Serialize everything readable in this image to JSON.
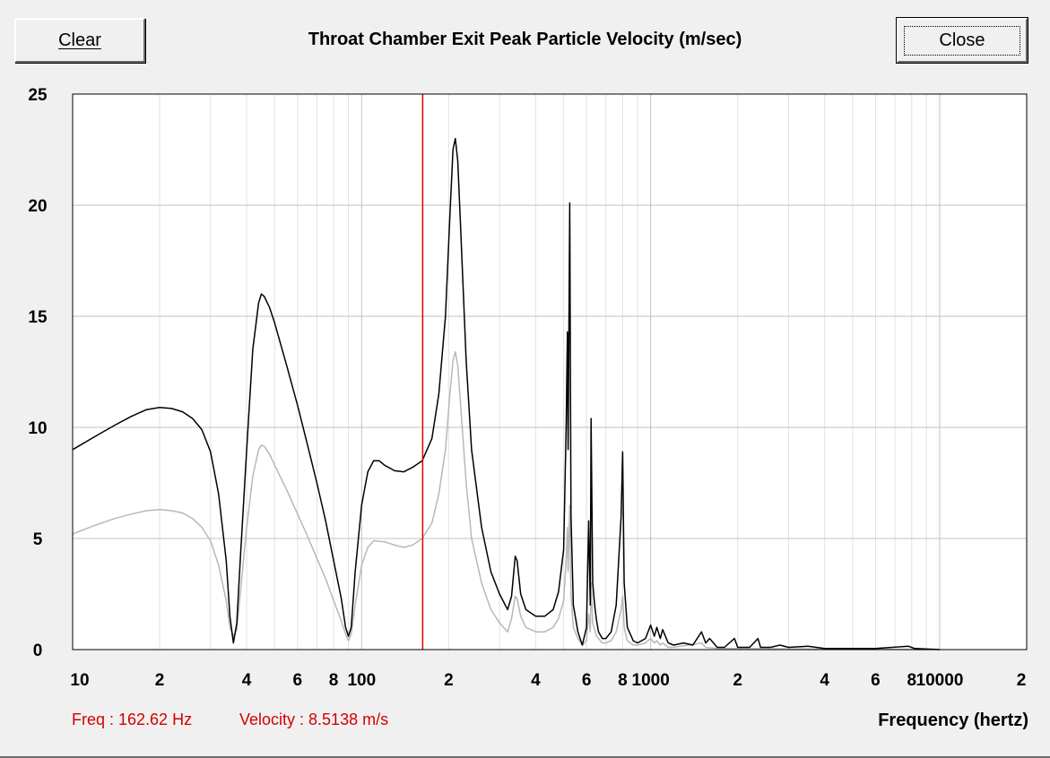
{
  "window": {
    "clear_label": "Clear",
    "close_label": "Close",
    "title": "Throat Chamber Exit Peak Particle Velocity (m/sec)"
  },
  "readout": {
    "freq": "Freq : 162.62 Hz",
    "velocity": "Velocity : 8.5138 m/s"
  },
  "chart_data": {
    "type": "line",
    "title": "Throat Chamber Exit Peak Particle Velocity (m/sec)",
    "xlabel": "Frequency (hertz)",
    "ylabel": "",
    "x_scale": "log",
    "xlim": [
      10,
      20000
    ],
    "ylim": [
      0,
      25
    ],
    "grid": true,
    "y_ticks": [
      "0",
      "5",
      "10",
      "15",
      "20",
      "25"
    ],
    "x_tick_labels": [
      {
        "x": 10,
        "label": "10"
      },
      {
        "x": 20,
        "label": "2"
      },
      {
        "x": 40,
        "label": "4"
      },
      {
        "x": 60,
        "label": "6"
      },
      {
        "x": 80,
        "label": "8"
      },
      {
        "x": 100,
        "label": "100"
      },
      {
        "x": 200,
        "label": "2"
      },
      {
        "x": 400,
        "label": "4"
      },
      {
        "x": 600,
        "label": "6"
      },
      {
        "x": 800,
        "label": "8"
      },
      {
        "x": 1000,
        "label": "1000"
      },
      {
        "x": 2000,
        "label": "2"
      },
      {
        "x": 4000,
        "label": "4"
      },
      {
        "x": 6000,
        "label": "6"
      },
      {
        "x": 8000,
        "label": "8"
      },
      {
        "x": 10000,
        "label": "10000"
      },
      {
        "x": 20000,
        "label": "2"
      }
    ],
    "cursor": {
      "x": 162.62,
      "color": "#e00000"
    },
    "series": [
      {
        "color": "#000000",
        "points": [
          [
            10,
            9.0
          ],
          [
            12,
            9.6
          ],
          [
            14,
            10.1
          ],
          [
            16,
            10.5
          ],
          [
            18,
            10.8
          ],
          [
            20,
            10.9
          ],
          [
            22,
            10.85
          ],
          [
            24,
            10.7
          ],
          [
            26,
            10.4
          ],
          [
            28,
            9.9
          ],
          [
            30,
            8.9
          ],
          [
            32,
            7.0
          ],
          [
            34,
            4.0
          ],
          [
            35,
            1.5
          ],
          [
            36,
            0.3
          ],
          [
            37,
            1.2
          ],
          [
            38,
            4.0
          ],
          [
            40,
            9.0
          ],
          [
            42,
            13.5
          ],
          [
            44,
            15.6
          ],
          [
            45,
            16.0
          ],
          [
            46,
            15.9
          ],
          [
            48,
            15.4
          ],
          [
            50,
            14.7
          ],
          [
            55,
            12.8
          ],
          [
            60,
            11.0
          ],
          [
            65,
            9.2
          ],
          [
            70,
            7.5
          ],
          [
            75,
            5.8
          ],
          [
            80,
            4.0
          ],
          [
            85,
            2.3
          ],
          [
            88,
            1.0
          ],
          [
            90,
            0.6
          ],
          [
            92,
            1.0
          ],
          [
            95,
            3.5
          ],
          [
            100,
            6.5
          ],
          [
            105,
            8.0
          ],
          [
            110,
            8.5
          ],
          [
            115,
            8.5
          ],
          [
            120,
            8.3
          ],
          [
            130,
            8.05
          ],
          [
            140,
            8.0
          ],
          [
            150,
            8.2
          ],
          [
            162,
            8.5
          ],
          [
            175,
            9.5
          ],
          [
            185,
            11.5
          ],
          [
            195,
            15.0
          ],
          [
            202,
            19.5
          ],
          [
            207,
            22.5
          ],
          [
            211,
            23.0
          ],
          [
            215,
            22.0
          ],
          [
            220,
            19.0
          ],
          [
            230,
            13.0
          ],
          [
            240,
            9.0
          ],
          [
            260,
            5.5
          ],
          [
            280,
            3.5
          ],
          [
            300,
            2.5
          ],
          [
            320,
            1.8
          ],
          [
            330,
            2.4
          ],
          [
            340,
            4.2
          ],
          [
            345,
            4.0
          ],
          [
            355,
            2.5
          ],
          [
            370,
            1.8
          ],
          [
            400,
            1.5
          ],
          [
            430,
            1.5
          ],
          [
            460,
            1.8
          ],
          [
            480,
            2.6
          ],
          [
            500,
            4.5
          ],
          [
            510,
            10.0
          ],
          [
            515,
            14.3
          ],
          [
            518,
            9.0
          ],
          [
            525,
            20.1
          ],
          [
            530,
            6.0
          ],
          [
            540,
            2.0
          ],
          [
            560,
            0.8
          ],
          [
            580,
            0.2
          ],
          [
            600,
            1.0
          ],
          [
            610,
            5.8
          ],
          [
            618,
            2.0
          ],
          [
            622,
            10.4
          ],
          [
            630,
            3.0
          ],
          [
            640,
            2.0
          ],
          [
            650,
            1.3
          ],
          [
            660,
            0.8
          ],
          [
            680,
            0.5
          ],
          [
            700,
            0.5
          ],
          [
            730,
            0.8
          ],
          [
            760,
            2.0
          ],
          [
            790,
            6.0
          ],
          [
            800,
            8.9
          ],
          [
            810,
            3.0
          ],
          [
            830,
            1.0
          ],
          [
            870,
            0.4
          ],
          [
            900,
            0.3
          ],
          [
            960,
            0.5
          ],
          [
            1000,
            1.1
          ],
          [
            1030,
            0.6
          ],
          [
            1050,
            1.0
          ],
          [
            1080,
            0.5
          ],
          [
            1100,
            0.9
          ],
          [
            1150,
            0.3
          ],
          [
            1200,
            0.2
          ],
          [
            1300,
            0.3
          ],
          [
            1400,
            0.2
          ],
          [
            1500,
            0.8
          ],
          [
            1550,
            0.3
          ],
          [
            1600,
            0.5
          ],
          [
            1700,
            0.1
          ],
          [
            1800,
            0.1
          ],
          [
            1950,
            0.5
          ],
          [
            2000,
            0.1
          ],
          [
            2200,
            0.1
          ],
          [
            2350,
            0.5
          ],
          [
            2400,
            0.1
          ],
          [
            2600,
            0.1
          ],
          [
            2800,
            0.2
          ],
          [
            3000,
            0.1
          ],
          [
            3500,
            0.15
          ],
          [
            4000,
            0.05
          ],
          [
            6000,
            0.05
          ],
          [
            7800,
            0.15
          ],
          [
            8200,
            0.05
          ],
          [
            10000,
            0.0
          ]
        ]
      },
      {
        "color": "#b8b8b8",
        "points": [
          [
            10,
            5.2
          ],
          [
            12,
            5.6
          ],
          [
            14,
            5.9
          ],
          [
            16,
            6.1
          ],
          [
            18,
            6.25
          ],
          [
            20,
            6.3
          ],
          [
            22,
            6.25
          ],
          [
            24,
            6.15
          ],
          [
            26,
            5.9
          ],
          [
            28,
            5.5
          ],
          [
            30,
            4.9
          ],
          [
            32,
            3.8
          ],
          [
            34,
            2.2
          ],
          [
            35,
            1.0
          ],
          [
            36,
            0.6
          ],
          [
            37,
            0.9
          ],
          [
            38,
            2.5
          ],
          [
            40,
            5.5
          ],
          [
            42,
            7.8
          ],
          [
            44,
            9.0
          ],
          [
            45,
            9.2
          ],
          [
            46,
            9.15
          ],
          [
            48,
            8.8
          ],
          [
            50,
            8.3
          ],
          [
            55,
            7.2
          ],
          [
            60,
            6.1
          ],
          [
            65,
            5.1
          ],
          [
            70,
            4.1
          ],
          [
            75,
            3.2
          ],
          [
            80,
            2.2
          ],
          [
            85,
            1.3
          ],
          [
            88,
            0.7
          ],
          [
            90,
            0.4
          ],
          [
            92,
            0.7
          ],
          [
            95,
            2.0
          ],
          [
            100,
            3.8
          ],
          [
            105,
            4.6
          ],
          [
            110,
            4.9
          ],
          [
            120,
            4.85
          ],
          [
            130,
            4.7
          ],
          [
            140,
            4.6
          ],
          [
            150,
            4.7
          ],
          [
            162,
            5.0
          ],
          [
            175,
            5.7
          ],
          [
            185,
            7.0
          ],
          [
            195,
            9.0
          ],
          [
            202,
            11.5
          ],
          [
            207,
            13.0
          ],
          [
            211,
            13.4
          ],
          [
            215,
            12.8
          ],
          [
            220,
            11.0
          ],
          [
            230,
            7.5
          ],
          [
            240,
            5.0
          ],
          [
            260,
            3.0
          ],
          [
            280,
            1.8
          ],
          [
            300,
            1.2
          ],
          [
            320,
            0.8
          ],
          [
            330,
            1.4
          ],
          [
            340,
            2.4
          ],
          [
            345,
            2.3
          ],
          [
            355,
            1.5
          ],
          [
            370,
            1.0
          ],
          [
            400,
            0.8
          ],
          [
            430,
            0.8
          ],
          [
            460,
            1.0
          ],
          [
            480,
            1.4
          ],
          [
            500,
            2.2
          ],
          [
            510,
            4.0
          ],
          [
            515,
            5.5
          ],
          [
            518,
            3.5
          ],
          [
            525,
            6.5
          ],
          [
            530,
            2.5
          ],
          [
            540,
            1.0
          ],
          [
            560,
            0.5
          ],
          [
            580,
            0.2
          ],
          [
            600,
            0.4
          ],
          [
            610,
            1.6
          ],
          [
            618,
            0.8
          ],
          [
            622,
            3.0
          ],
          [
            630,
            1.2
          ],
          [
            640,
            0.9
          ],
          [
            650,
            0.6
          ],
          [
            660,
            0.5
          ],
          [
            680,
            0.3
          ],
          [
            700,
            0.3
          ],
          [
            730,
            0.4
          ],
          [
            760,
            0.8
          ],
          [
            790,
            1.8
          ],
          [
            800,
            2.4
          ],
          [
            810,
            1.0
          ],
          [
            830,
            0.4
          ],
          [
            870,
            0.2
          ],
          [
            900,
            0.2
          ],
          [
            960,
            0.3
          ],
          [
            1000,
            0.5
          ],
          [
            1030,
            0.3
          ],
          [
            1050,
            0.4
          ],
          [
            1080,
            0.2
          ],
          [
            1100,
            0.3
          ],
          [
            1150,
            0.1
          ],
          [
            1200,
            0.1
          ],
          [
            1500,
            0.3
          ],
          [
            1550,
            0.1
          ],
          [
            1700,
            0.05
          ],
          [
            2000,
            0.05
          ],
          [
            3000,
            0.03
          ],
          [
            10000,
            0.0
          ]
        ]
      }
    ]
  }
}
